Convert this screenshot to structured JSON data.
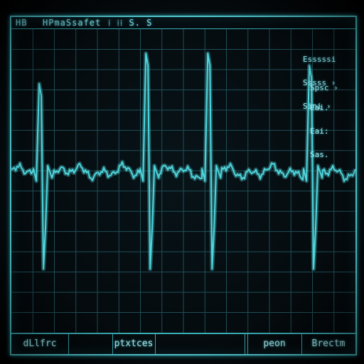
{
  "header": {
    "left_label": "HB",
    "title": "HPmaSsafet",
    "title_suffix": "⁞ ⁞⁞ S. S"
  },
  "readouts": {
    "lines_a": [
      "Esssssi",
      "Sssss ›",
      "Sini ›"
    ],
    "line_b": "Spsc ›",
    "lines_c": [
      "Eai.",
      "Eai:",
      "Sas."
    ]
  },
  "footer": {
    "cells": [
      "dLlfrc",
      "",
      "ptxtces",
      "",
      "",
      "peon",
      "Brectm"
    ]
  },
  "trace": {
    "color": "#4fd6dd",
    "grid_color": "#1f4f57",
    "baseline_level": 0.53,
    "beats": [
      {
        "t": 0.085,
        "peak": 0.82
      },
      {
        "t": 0.395,
        "peak": 0.92
      },
      {
        "t": 0.575,
        "peak": 0.92
      },
      {
        "t": 0.87,
        "peak": 0.88
      }
    ]
  }
}
